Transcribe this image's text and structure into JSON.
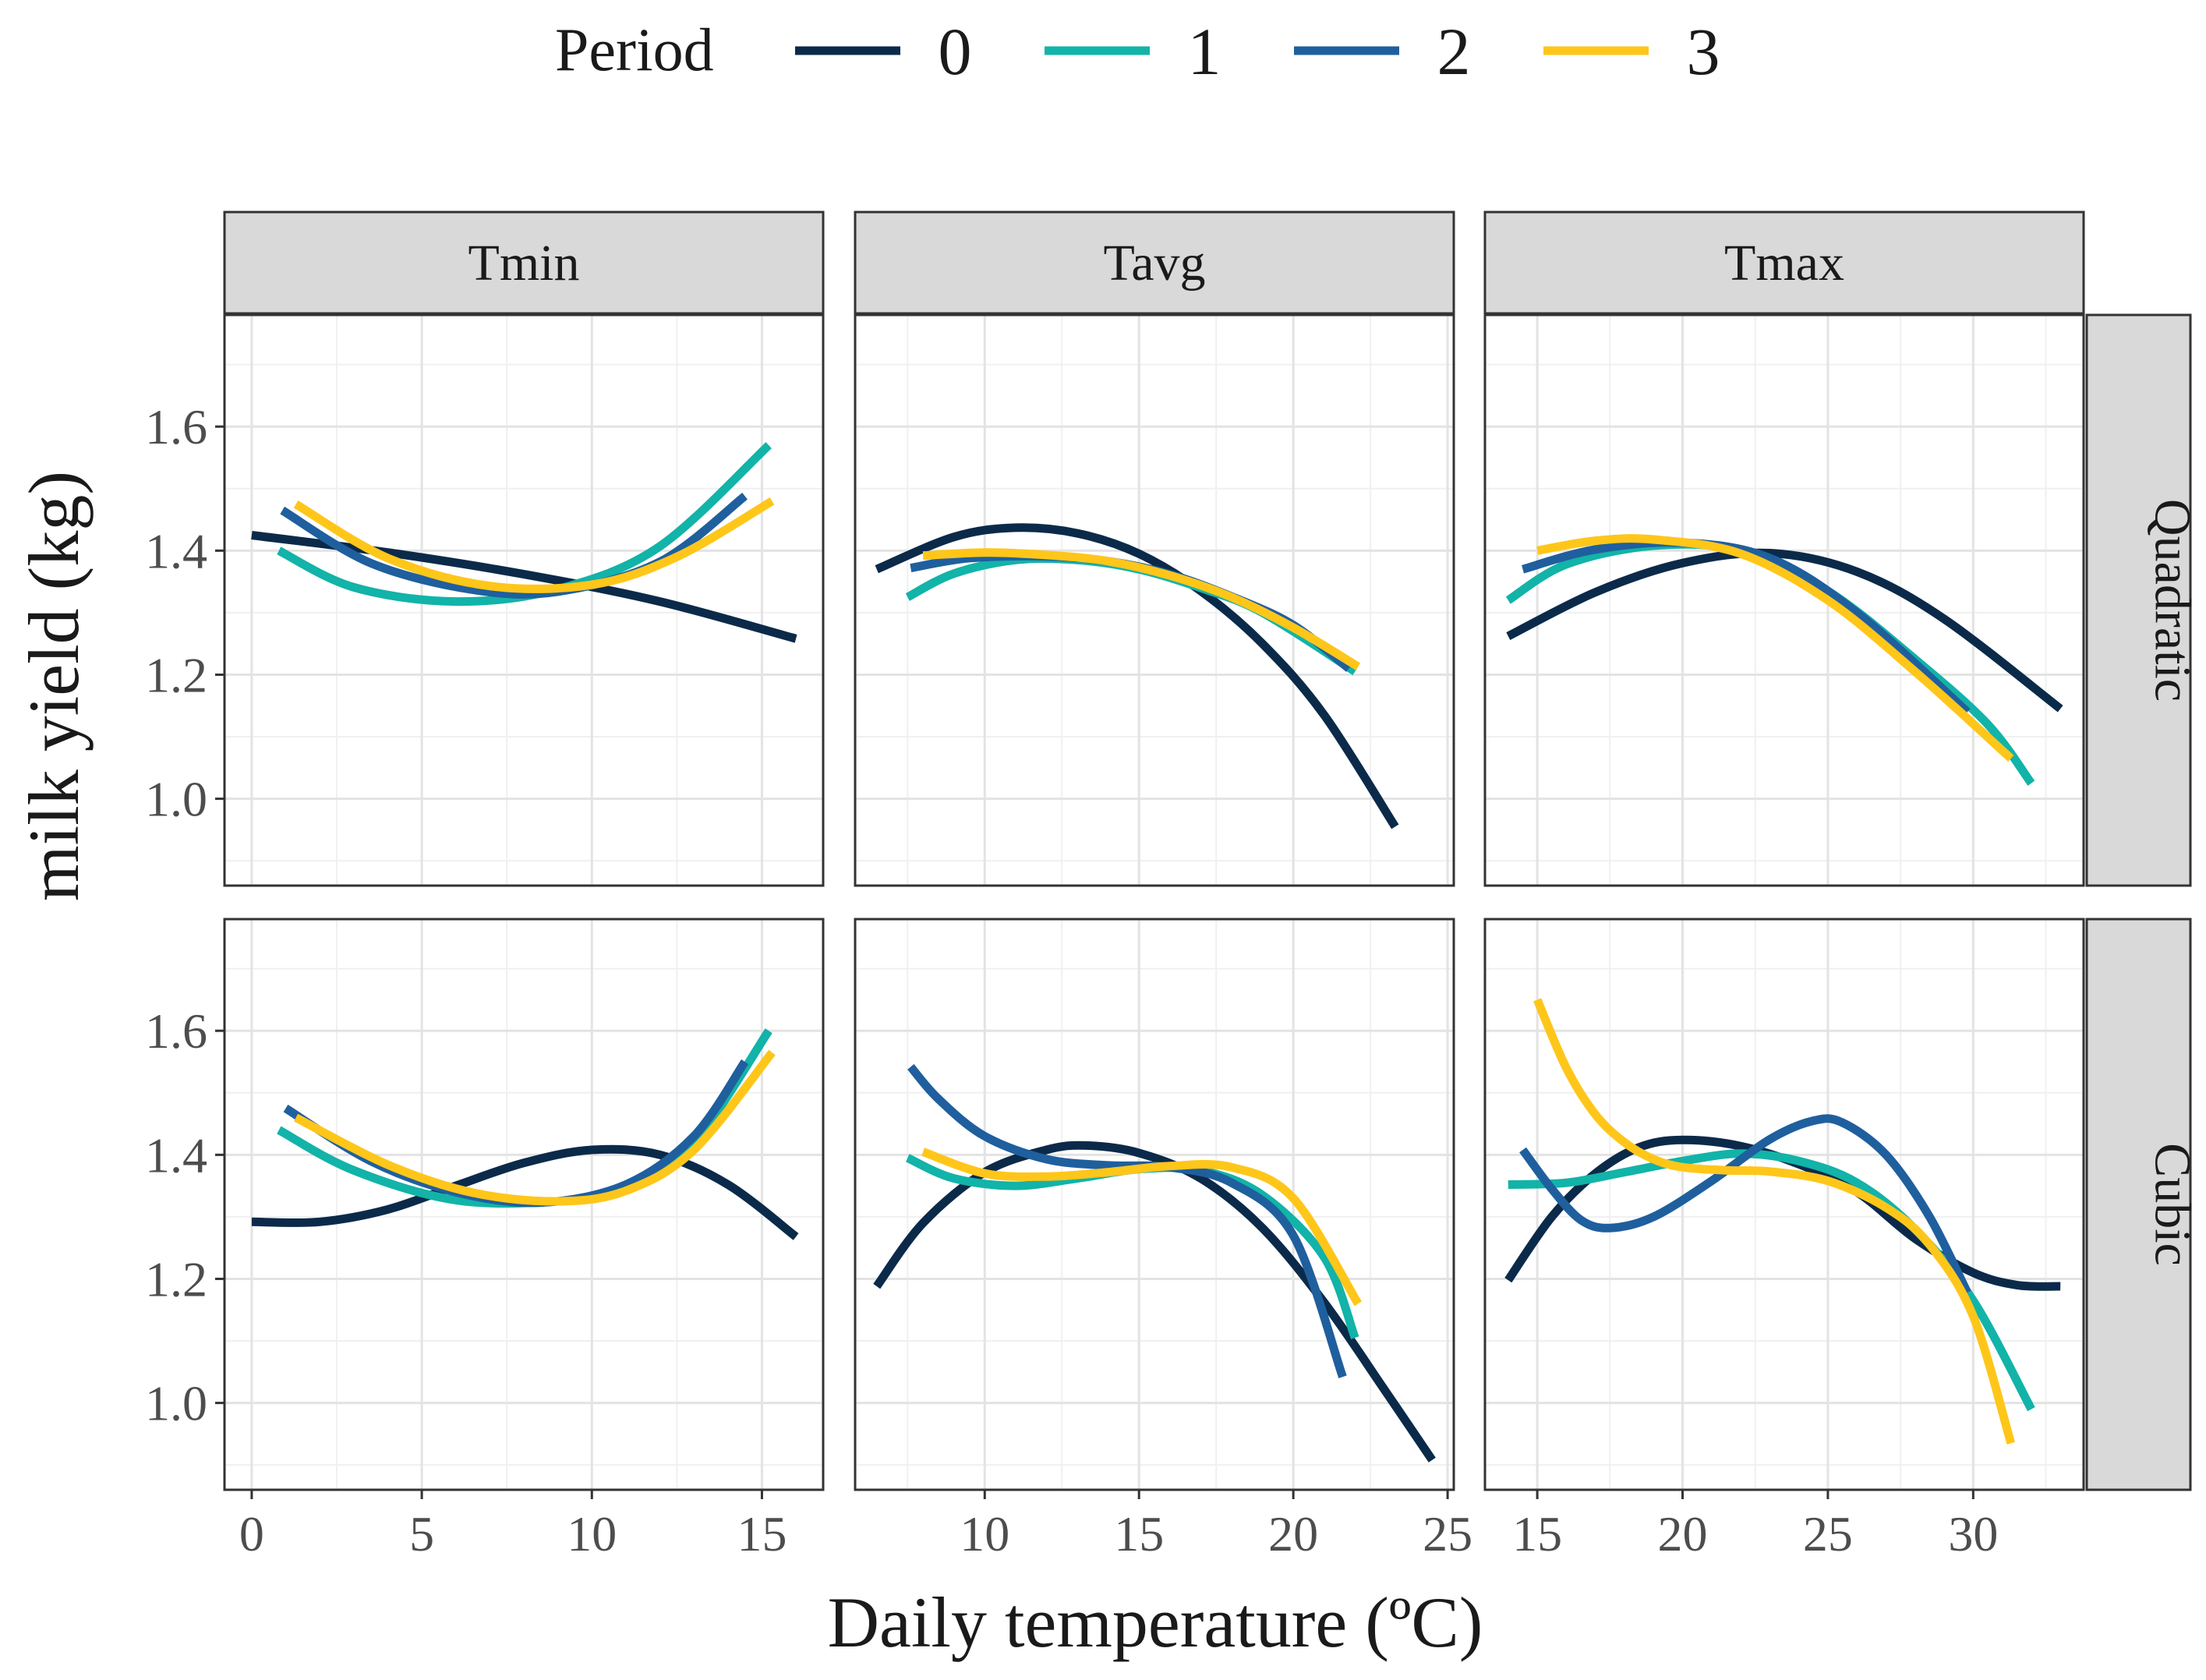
{
  "chart_data": {
    "type": "line",
    "title": "",
    "legend": {
      "title": "Period",
      "position": "top",
      "entries": [
        {
          "label": "0",
          "color": "#0b2a4a"
        },
        {
          "label": "1",
          "color": "#12b3a8"
        },
        {
          "label": "2",
          "color": "#1f5f9e"
        },
        {
          "label": "3",
          "color": "#ffc61a"
        }
      ]
    },
    "xlabel": "Daily temperature (ºC)",
    "ylabel": "milk yield (kg)",
    "ylim": [
      0.86,
      1.78
    ],
    "yticks": [
      1.0,
      1.2,
      1.4,
      1.6
    ],
    "grid": true,
    "columns": [
      {
        "name": "Tmin",
        "xlim": [
          -0.8,
          16.8
        ],
        "xticks": [
          0,
          5,
          10,
          15
        ]
      },
      {
        "name": "Tavg",
        "xlim": [
          5.8,
          25.2
        ],
        "xticks": [
          10,
          15,
          20,
          25
        ]
      },
      {
        "name": "Tmax",
        "xlim": [
          13.2,
          33.8
        ],
        "xticks": [
          15,
          20,
          25,
          30
        ]
      }
    ],
    "rows": [
      "Quadratic",
      "Cubic"
    ],
    "panels": [
      {
        "column": "Tmin",
        "row": "Quadratic",
        "series": [
          {
            "name": "0",
            "points": [
              [
                0,
                1.425
              ],
              [
                4,
                1.397
              ],
              [
                8,
                1.362
              ],
              [
                12,
                1.318
              ],
              [
                16,
                1.258
              ]
            ]
          },
          {
            "name": "1",
            "points": [
              [
                0.8,
                1.4
              ],
              [
                3,
                1.341
              ],
              [
                6,
                1.318
              ],
              [
                9,
                1.338
              ],
              [
                12,
                1.407
              ],
              [
                15.2,
                1.57
              ]
            ]
          },
          {
            "name": "2",
            "points": [
              [
                0.9,
                1.465
              ],
              [
                3.5,
                1.38
              ],
              [
                6.5,
                1.337
              ],
              [
                9,
                1.334
              ],
              [
                12,
                1.382
              ],
              [
                14.5,
                1.488
              ]
            ]
          },
          {
            "name": "3",
            "points": [
              [
                1.3,
                1.475
              ],
              [
                4,
                1.388
              ],
              [
                7,
                1.343
              ],
              [
                10,
                1.345
              ],
              [
                12.5,
                1.39
              ],
              [
                15.3,
                1.48
              ]
            ]
          }
        ]
      },
      {
        "column": "Tavg",
        "row": "Quadratic",
        "series": [
          {
            "name": "0",
            "points": [
              [
                6.5,
                1.37
              ],
              [
                9,
                1.422
              ],
              [
                11,
                1.437
              ],
              [
                13,
                1.428
              ],
              [
                15,
                1.395
              ],
              [
                17,
                1.335
              ],
              [
                19,
                1.25
              ],
              [
                21,
                1.135
              ],
              [
                23.3,
                0.955
              ]
            ]
          },
          {
            "name": "1",
            "points": [
              [
                7.5,
                1.325
              ],
              [
                9,
                1.363
              ],
              [
                11,
                1.385
              ],
              [
                13,
                1.385
              ],
              [
                15,
                1.37
              ],
              [
                17,
                1.34
              ],
              [
                19,
                1.3
              ],
              [
                22,
                1.205
              ]
            ]
          },
          {
            "name": "2",
            "points": [
              [
                7.6,
                1.372
              ],
              [
                9.5,
                1.388
              ],
              [
                12,
                1.391
              ],
              [
                14,
                1.383
              ],
              [
                16,
                1.362
              ],
              [
                18,
                1.326
              ],
              [
                20,
                1.28
              ],
              [
                21.8,
                1.21
              ]
            ]
          },
          {
            "name": "3",
            "points": [
              [
                8,
                1.392
              ],
              [
                10,
                1.397
              ],
              [
                12,
                1.393
              ],
              [
                14,
                1.383
              ],
              [
                16,
                1.36
              ],
              [
                18,
                1.325
              ],
              [
                20,
                1.276
              ],
              [
                22.1,
                1.213
              ]
            ]
          }
        ]
      },
      {
        "column": "Tmax",
        "row": "Quadratic",
        "series": [
          {
            "name": "0",
            "points": [
              [
                14,
                1.262
              ],
              [
                17,
                1.333
              ],
              [
                20,
                1.38
              ],
              [
                23,
                1.396
              ],
              [
                26,
                1.366
              ],
              [
                29,
                1.29
              ],
              [
                33,
                1.145
              ]
            ]
          },
          {
            "name": "1",
            "points": [
              [
                14,
                1.32
              ],
              [
                16,
                1.378
              ],
              [
                19,
                1.408
              ],
              [
                22,
                1.4
              ],
              [
                25,
                1.335
              ],
              [
                28,
                1.225
              ],
              [
                30.5,
                1.12
              ],
              [
                32,
                1.025
              ]
            ]
          },
          {
            "name": "2",
            "points": [
              [
                14.5,
                1.37
              ],
              [
                17,
                1.402
              ],
              [
                20,
                1.413
              ],
              [
                23,
                1.388
              ],
              [
                26,
                1.3
              ],
              [
                29.8,
                1.14
              ]
            ]
          },
          {
            "name": "3",
            "points": [
              [
                15,
                1.4
              ],
              [
                17,
                1.416
              ],
              [
                19,
                1.418
              ],
              [
                22,
                1.395
              ],
              [
                25,
                1.32
              ],
              [
                28,
                1.205
              ],
              [
                31.3,
                1.065
              ]
            ]
          }
        ]
      },
      {
        "column": "Tmin",
        "row": "Cubic",
        "series": [
          {
            "name": "0",
            "points": [
              [
                0,
                1.292
              ],
              [
                2,
                1.292
              ],
              [
                4,
                1.312
              ],
              [
                6,
                1.35
              ],
              [
                8,
                1.387
              ],
              [
                10,
                1.408
              ],
              [
                12,
                1.4
              ],
              [
                14,
                1.352
              ],
              [
                16,
                1.268
              ]
            ]
          },
          {
            "name": "1",
            "points": [
              [
                0.8,
                1.44
              ],
              [
                3,
                1.375
              ],
              [
                6,
                1.327
              ],
              [
                9,
                1.325
              ],
              [
                11,
                1.344
              ],
              [
                13,
                1.42
              ],
              [
                15.2,
                1.6
              ]
            ]
          },
          {
            "name": "2",
            "points": [
              [
                1,
                1.475
              ],
              [
                3.5,
                1.39
              ],
              [
                6,
                1.34
              ],
              [
                8.5,
                1.323
              ],
              [
                11,
                1.352
              ],
              [
                13,
                1.43
              ],
              [
                14.5,
                1.55
              ]
            ]
          },
          {
            "name": "3",
            "points": [
              [
                1.3,
                1.46
              ],
              [
                4,
                1.384
              ],
              [
                6.5,
                1.339
              ],
              [
                9,
                1.325
              ],
              [
                11,
                1.342
              ],
              [
                13,
                1.408
              ],
              [
                15.3,
                1.565
              ]
            ]
          }
        ]
      },
      {
        "column": "Tavg",
        "row": "Cubic",
        "series": [
          {
            "name": "0",
            "points": [
              [
                6.5,
                1.188
              ],
              [
                8,
                1.29
              ],
              [
                10,
                1.372
              ],
              [
                12,
                1.408
              ],
              [
                13.3,
                1.415
              ],
              [
                15,
                1.403
              ],
              [
                17,
                1.362
              ],
              [
                19,
                1.282
              ],
              [
                21,
                1.162
              ],
              [
                23,
                1.018
              ],
              [
                24.5,
                0.908
              ]
            ]
          },
          {
            "name": "1",
            "points": [
              [
                7.5,
                1.395
              ],
              [
                9,
                1.362
              ],
              [
                11,
                1.35
              ],
              [
                13,
                1.362
              ],
              [
                15,
                1.377
              ],
              [
                17,
                1.375
              ],
              [
                19,
                1.335
              ],
              [
                21,
                1.235
              ],
              [
                22,
                1.105
              ]
            ]
          },
          {
            "name": "2",
            "points": [
              [
                7.6,
                1.542
              ],
              [
                8.5,
                1.49
              ],
              [
                10,
                1.43
              ],
              [
                12,
                1.393
              ],
              [
                14,
                1.383
              ],
              [
                16,
                1.38
              ],
              [
                18,
                1.355
              ],
              [
                20,
                1.27
              ],
              [
                21.6,
                1.042
              ]
            ]
          },
          {
            "name": "3",
            "points": [
              [
                8,
                1.405
              ],
              [
                10,
                1.37
              ],
              [
                12,
                1.365
              ],
              [
                14,
                1.372
              ],
              [
                16,
                1.382
              ],
              [
                18,
                1.38
              ],
              [
                20,
                1.33
              ],
              [
                22.1,
                1.16
              ]
            ]
          }
        ]
      },
      {
        "column": "Tmax",
        "row": "Cubic",
        "series": [
          {
            "name": "0",
            "points": [
              [
                14,
                1.198
              ],
              [
                15.5,
                1.3
              ],
              [
                17,
                1.37
              ],
              [
                18.5,
                1.412
              ],
              [
                20,
                1.424
              ],
              [
                22,
                1.414
              ],
              [
                24,
                1.385
              ],
              [
                26,
                1.34
              ],
              [
                28,
                1.265
              ],
              [
                30,
                1.21
              ],
              [
                31.5,
                1.19
              ],
              [
                33,
                1.188
              ]
            ]
          },
          {
            "name": "1",
            "points": [
              [
                14,
                1.352
              ],
              [
                16,
                1.355
              ],
              [
                18,
                1.372
              ],
              [
                20,
                1.39
              ],
              [
                22,
                1.402
              ],
              [
                24,
                1.39
              ],
              [
                26,
                1.355
              ],
              [
                28,
                1.28
              ],
              [
                30,
                1.165
              ],
              [
                32,
                0.99
              ]
            ]
          },
          {
            "name": "2",
            "points": [
              [
                14.5,
                1.408
              ],
              [
                15.5,
                1.345
              ],
              [
                16.5,
                1.295
              ],
              [
                17.5,
                1.282
              ],
              [
                19,
                1.3
              ],
              [
                21,
                1.358
              ],
              [
                23,
                1.425
              ],
              [
                24.5,
                1.455
              ],
              [
                25.5,
                1.452
              ],
              [
                27,
                1.4
              ],
              [
                28.5,
                1.3
              ],
              [
                29.8,
                1.178
              ]
            ]
          },
          {
            "name": "3",
            "points": [
              [
                15,
                1.65
              ],
              [
                16,
                1.54
              ],
              [
                17,
                1.465
              ],
              [
                18,
                1.42
              ],
              [
                19,
                1.393
              ],
              [
                20,
                1.38
              ],
              [
                21.5,
                1.375
              ],
              [
                23,
                1.373
              ],
              [
                25,
                1.358
              ],
              [
                27,
                1.315
              ],
              [
                28.5,
                1.255
              ],
              [
                30,
                1.14
              ],
              [
                31.3,
                0.935
              ]
            ]
          }
        ]
      }
    ]
  }
}
